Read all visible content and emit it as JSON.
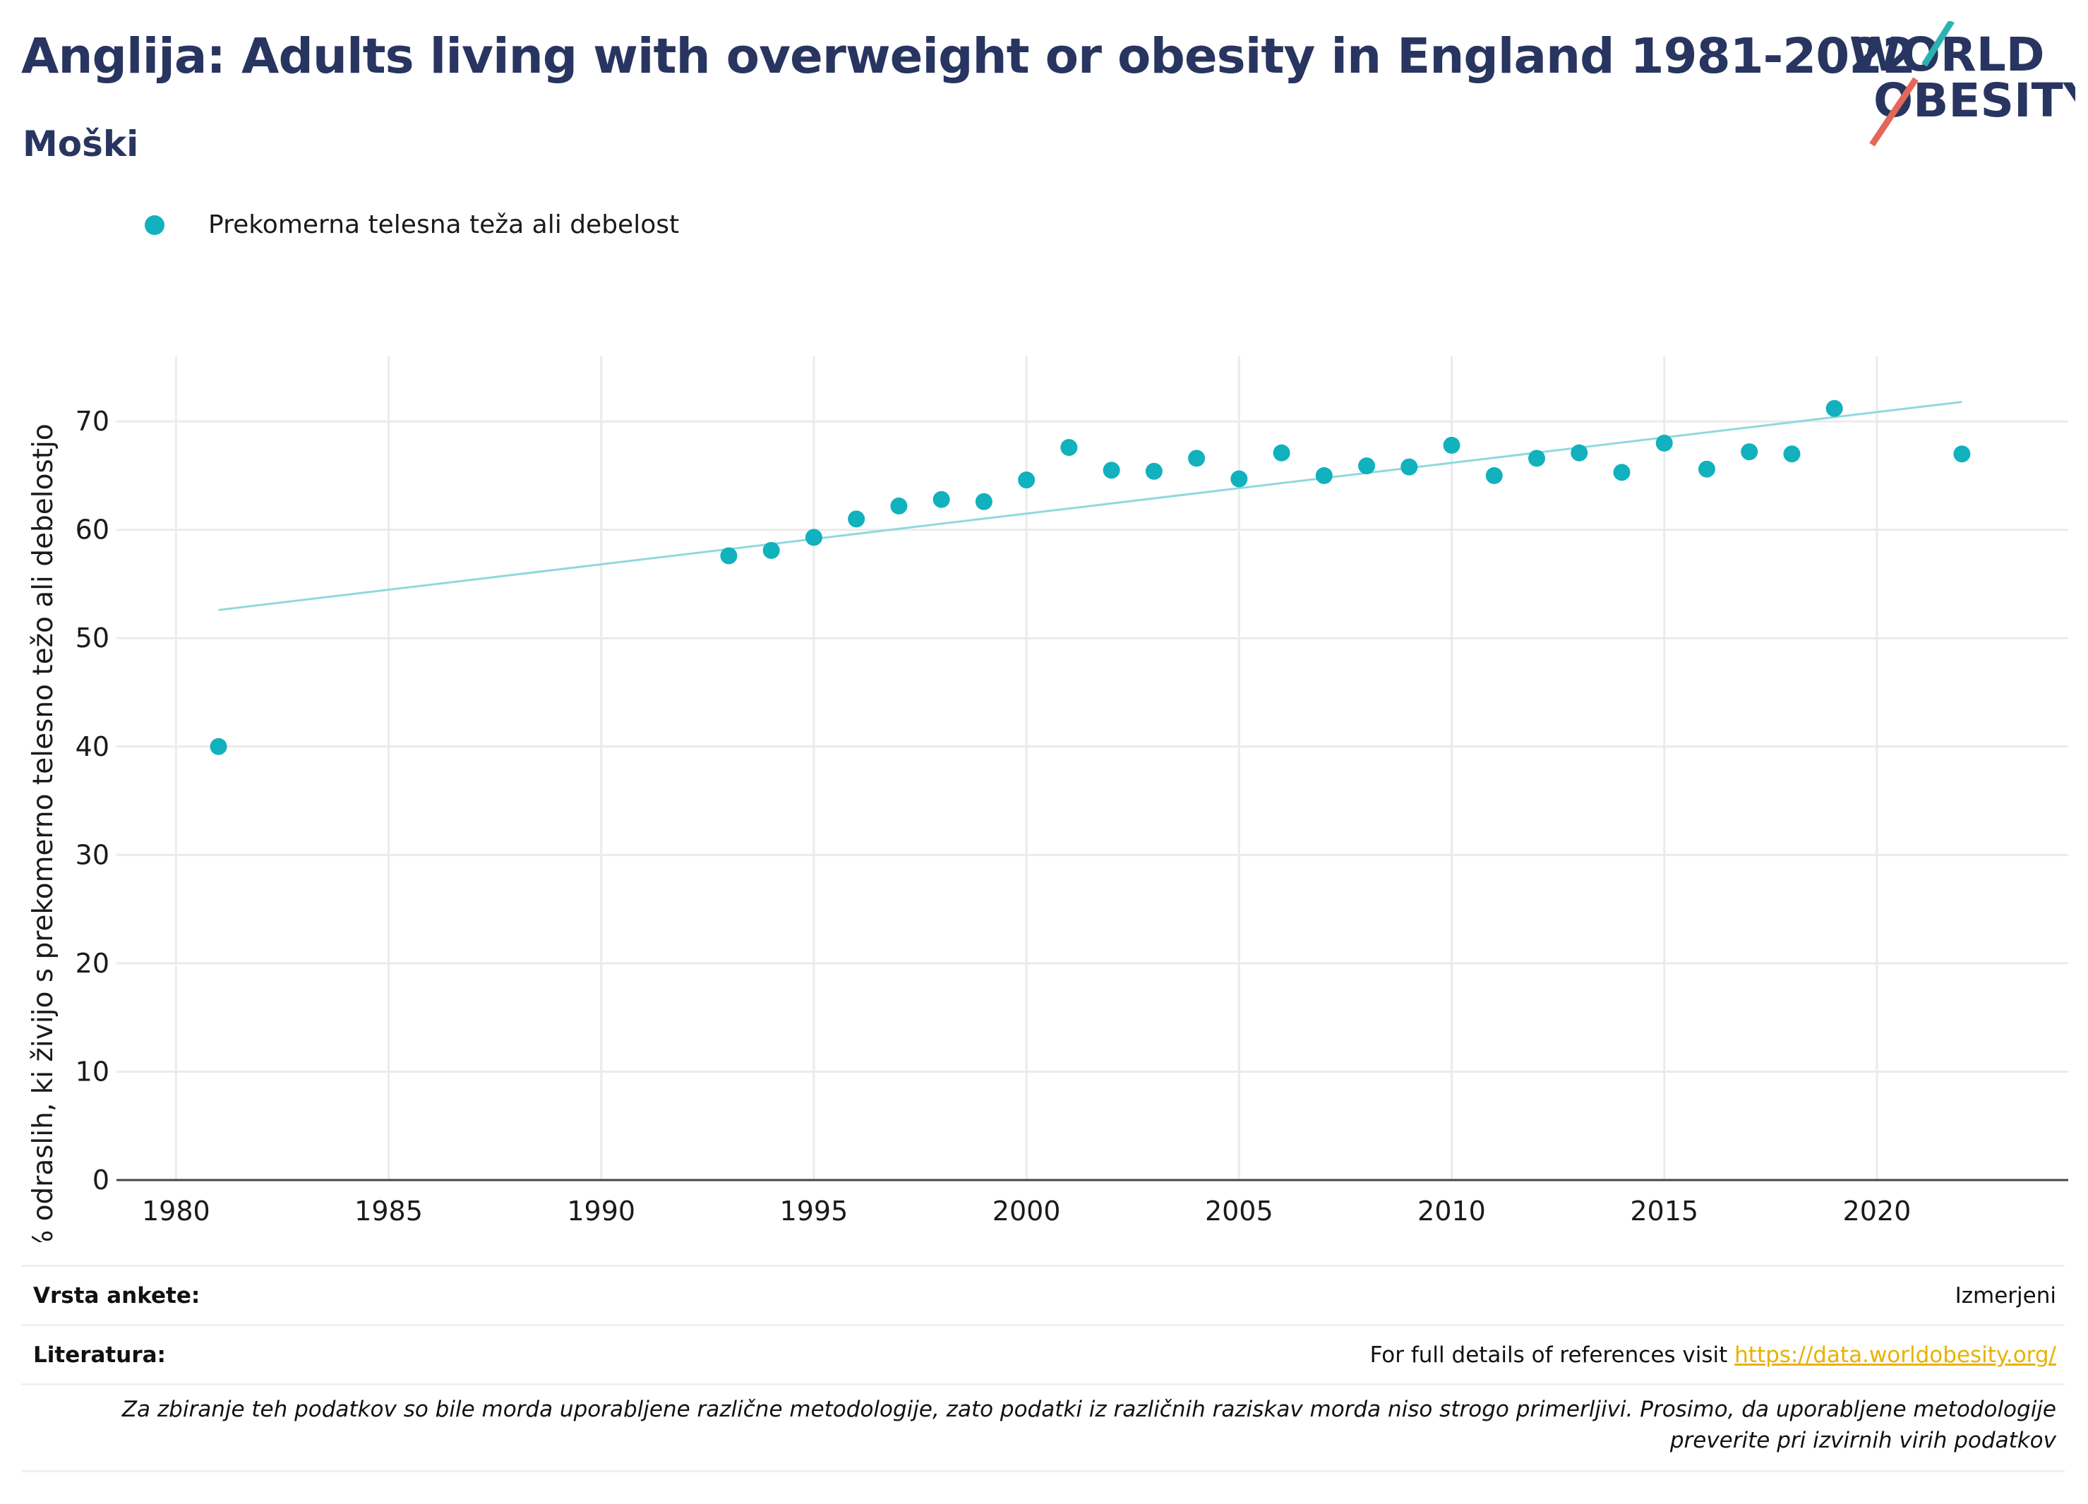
{
  "header": {
    "title": "Anglija: Adults living with overweight or obesity in England 1981-2022",
    "subtitle": "Moški"
  },
  "logo": {
    "line1": "WORLD",
    "line2": "OBESITY",
    "accent_teal": "#2bb3b1",
    "accent_red": "#e2685a",
    "text_color": "#283560"
  },
  "legend": {
    "items": [
      {
        "label": "Prekomerna telesna teža ali debelost",
        "color": "#11b1bd"
      }
    ]
  },
  "chart_data": {
    "type": "scatter",
    "title": "",
    "xlabel": "",
    "ylabel": "% odraslih, ki živijo s prekomerno telesno težo ali debelostjo",
    "xlim": [
      1978.6,
      2024.5
    ],
    "ylim": [
      0,
      76
    ],
    "x_ticks": [
      1980,
      1985,
      1990,
      1995,
      2000,
      2005,
      2010,
      2015,
      2020
    ],
    "y_ticks": [
      0,
      10,
      20,
      30,
      40,
      50,
      60,
      70
    ],
    "grid": true,
    "legend_position": "top-left",
    "series": [
      {
        "name": "Prekomerna telesna teža ali debelost",
        "color": "#11b1bd",
        "x": [
          1981,
          1993,
          1994,
          1995,
          1996,
          1997,
          1998,
          1999,
          2000,
          2001,
          2002,
          2003,
          2004,
          2005,
          2006,
          2007,
          2008,
          2009,
          2010,
          2011,
          2012,
          2013,
          2014,
          2015,
          2016,
          2017,
          2018,
          2019,
          2022
        ],
        "y": [
          40.0,
          57.6,
          58.1,
          59.3,
          61.0,
          62.2,
          62.8,
          62.6,
          64.6,
          67.6,
          65.5,
          65.4,
          66.6,
          64.7,
          67.1,
          65.0,
          65.9,
          65.8,
          67.8,
          65.0,
          66.6,
          67.1,
          65.3,
          68.0,
          65.6,
          67.2,
          67.0,
          71.2,
          67.0
        ]
      }
    ],
    "trendline": {
      "color": "#8fd9de",
      "x": [
        1981,
        2022
      ],
      "y": [
        52.6,
        71.8
      ]
    }
  },
  "footer": {
    "survey_label": "Vrsta ankete:",
    "survey_value": "Izmerjeni",
    "refs_label": "Literatura:",
    "refs_text": "For full details of references visit ",
    "refs_link": "https://data.worldobesity.org/",
    "note": "Za zbiranje teh podatkov so bile morda uporabljene različne metodologije, zato podatki iz različnih raziskav morda niso strogo primerljivi. Prosimo, da uporabljene metodologije preverite pri izvirnih virih podatkov"
  }
}
